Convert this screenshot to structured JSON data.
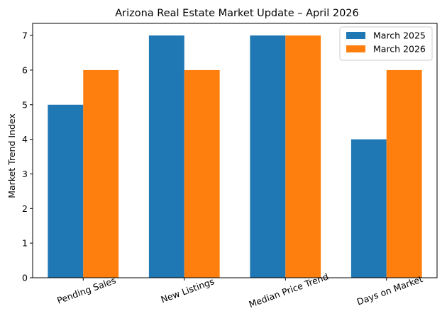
{
  "chart_data": {
    "type": "bar",
    "title": "Arizona Real Estate Market Update – April 2026",
    "xlabel": "",
    "ylabel": "Market Trend Index",
    "categories": [
      "Pending Sales",
      "New Listings",
      "Median Price Trend",
      "Days on Market"
    ],
    "series": [
      {
        "name": "March 2025",
        "values": [
          5,
          7,
          7,
          4
        ],
        "color": "#1f77b4"
      },
      {
        "name": "March 2026",
        "values": [
          6,
          6,
          7,
          6
        ],
        "color": "#ff7f0e"
      }
    ],
    "ylim": [
      0,
      7.35
    ],
    "yticks": [
      0,
      1,
      2,
      3,
      4,
      5,
      6,
      7
    ],
    "grid": false,
    "legend": "top-right"
  }
}
